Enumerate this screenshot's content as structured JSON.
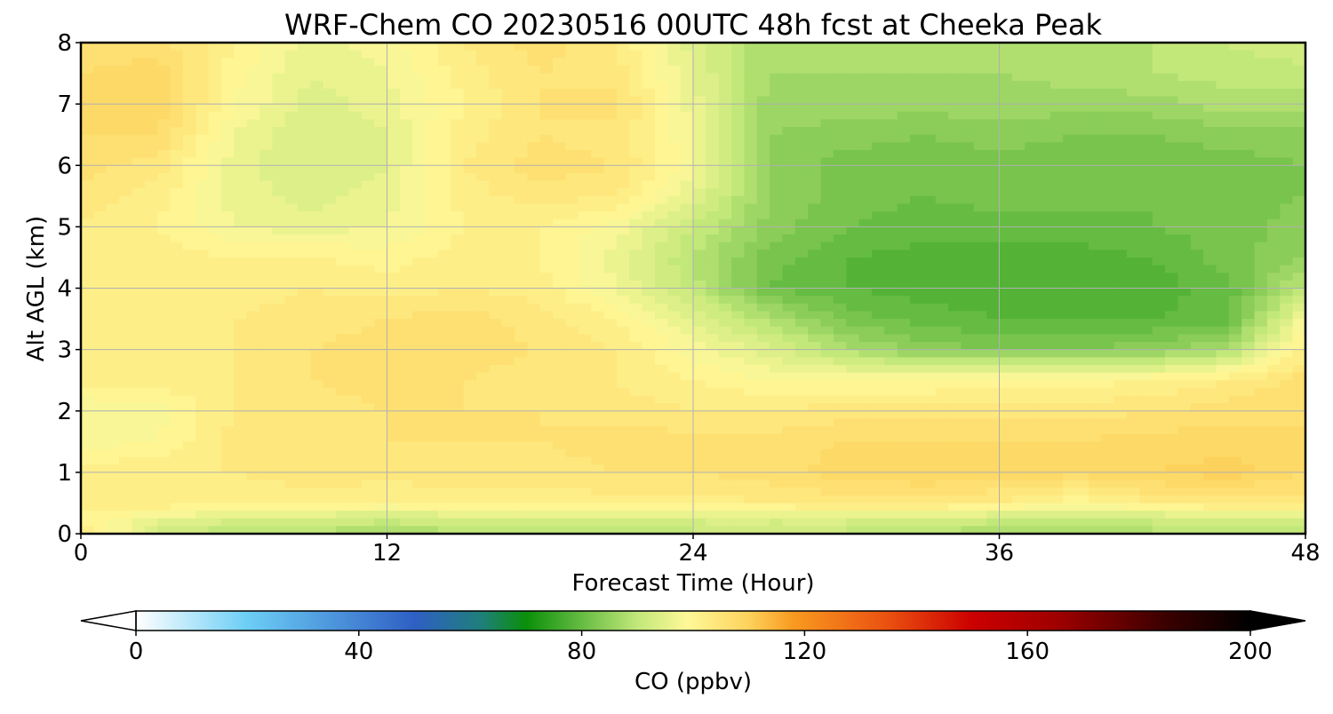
{
  "chart_data": {
    "type": "heatmap",
    "title": "WRF-Chem CO  20230516 00UTC 48h fcst at Cheeka Peak",
    "xlabel": "Forecast Time (Hour)",
    "ylabel": "Alt AGL (km)",
    "xlim": [
      0,
      48
    ],
    "ylim": [
      0,
      8
    ],
    "x_ticks": [
      "0",
      "12",
      "24",
      "36",
      "48"
    ],
    "y_ticks": [
      "0",
      "1",
      "2",
      "3",
      "4",
      "5",
      "6",
      "7",
      "8"
    ],
    "grid": true,
    "colorbar": {
      "label": "CO  (ppbv)",
      "range": [
        0,
        200
      ],
      "ticks": [
        "0",
        "40",
        "80",
        "120",
        "160",
        "200"
      ],
      "extend": "both",
      "stops": [
        {
          "value": 0,
          "color": "#ffffff"
        },
        {
          "value": 20,
          "color": "#6ccef5"
        },
        {
          "value": 50,
          "color": "#2f5fc4"
        },
        {
          "value": 62,
          "color": "#1f7f7a"
        },
        {
          "value": 70,
          "color": "#0a8f0a"
        },
        {
          "value": 90,
          "color": "#c2e87a"
        },
        {
          "value": 99,
          "color": "#fff899"
        },
        {
          "value": 110,
          "color": "#fdd25c"
        },
        {
          "value": 118,
          "color": "#f99a20"
        },
        {
          "value": 135,
          "color": "#ea5010"
        },
        {
          "value": 150,
          "color": "#cc0000"
        },
        {
          "value": 165,
          "color": "#a00000"
        },
        {
          "value": 185,
          "color": "#3a0000"
        },
        {
          "value": 200,
          "color": "#000000"
        }
      ]
    },
    "x": [
      0,
      3,
      6,
      9,
      12,
      15,
      18,
      21,
      24,
      27,
      30,
      33,
      36,
      39,
      42,
      45,
      48
    ],
    "y": [
      0,
      0.25,
      0.5,
      1,
      1.5,
      2,
      2.5,
      3,
      3.5,
      4,
      4.5,
      5,
      5.5,
      6,
      6.5,
      7,
      7.5,
      8
    ],
    "z": [
      [
        104,
        92,
        89,
        88,
        87,
        88,
        88,
        89,
        90,
        90,
        90,
        89,
        87,
        86,
        88,
        89,
        90
      ],
      [
        100,
        96,
        94,
        93,
        92,
        93,
        93,
        93,
        94,
        94,
        94,
        93,
        92,
        91,
        92,
        93,
        94
      ],
      [
        103,
        103,
        102,
        102,
        101,
        102,
        102,
        102,
        102,
        103,
        104,
        104,
        103,
        99,
        103,
        104,
        104
      ],
      [
        102,
        103,
        103,
        104,
        104,
        104,
        104,
        105,
        105,
        106,
        108,
        109,
        108,
        108,
        109,
        110,
        107
      ],
      [
        98,
        99,
        104,
        105,
        105,
        105,
        105,
        106,
        106,
        106,
        107,
        107,
        107,
        107,
        108,
        108,
        107
      ],
      [
        97,
        98,
        103,
        104,
        105,
        105,
        105,
        104,
        103,
        103,
        104,
        104,
        104,
        104,
        105,
        106,
        107
      ],
      [
        102,
        102,
        103,
        105,
        106,
        105,
        104,
        103,
        101,
        99,
        99,
        99,
        100,
        100,
        101,
        103,
        106
      ],
      [
        103,
        102,
        103,
        105,
        106,
        106,
        105,
        103,
        98,
        94,
        88,
        84,
        83,
        83,
        84,
        88,
        102
      ],
      [
        103,
        102,
        103,
        104,
        105,
        106,
        104,
        101,
        95,
        88,
        82,
        80,
        79,
        79,
        79,
        80,
        98
      ],
      [
        103,
        102,
        102,
        103,
        102,
        103,
        102,
        97,
        90,
        81,
        79,
        78,
        77,
        78,
        78,
        80,
        90
      ],
      [
        103,
        102,
        101,
        101,
        100,
        102,
        101,
        96,
        89,
        82,
        79,
        78,
        78,
        78,
        79,
        82,
        85
      ],
      [
        103,
        101,
        97,
        96,
        97,
        101,
        101,
        98,
        91,
        84,
        81,
        80,
        80,
        80,
        81,
        82,
        84
      ],
      [
        104,
        102,
        96,
        94,
        96,
        102,
        104,
        103,
        95,
        85,
        82,
        81,
        82,
        82,
        81,
        82,
        83
      ],
      [
        106,
        104,
        96,
        93,
        95,
        103,
        106,
        105,
        98,
        85,
        82,
        82,
        82,
        81,
        81,
        82,
        83
      ],
      [
        107,
        107,
        97,
        93,
        95,
        102,
        105,
        104,
        97,
        85,
        84,
        83,
        84,
        83,
        83,
        84,
        84
      ],
      [
        108,
        109,
        99,
        94,
        96,
        101,
        105,
        106,
        96,
        86,
        86,
        86,
        86,
        86,
        86,
        88,
        88
      ],
      [
        107,
        108,
        100,
        95,
        97,
        102,
        105,
        104,
        95,
        87,
        87,
        87,
        87,
        88,
        89,
        90,
        90
      ],
      [
        106,
        106,
        101,
        96,
        98,
        103,
        106,
        103,
        94,
        87,
        87,
        88,
        88,
        89,
        89,
        91,
        93
      ]
    ]
  }
}
